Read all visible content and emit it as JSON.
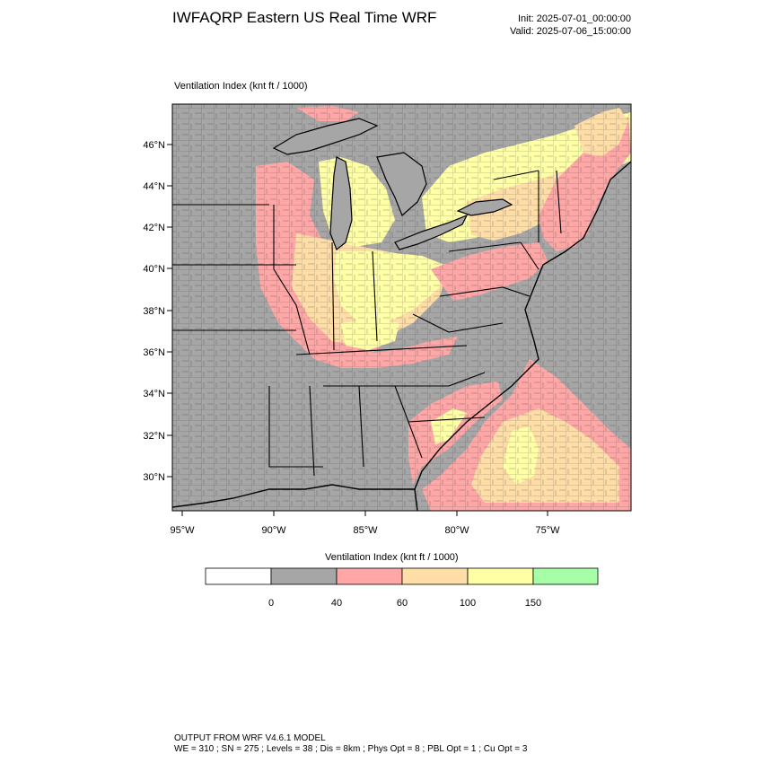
{
  "header": {
    "title": "IWFAQRP Eastern US Real Time WRF",
    "init": "Init: 2025-07-01_00:00:00",
    "valid": "Valid: 2025-07-06_15:00:00",
    "field_label": "Ventilation Index   (knt ft / 1000)"
  },
  "map": {
    "lat_labels": [
      "46°N",
      "44°N",
      "42°N",
      "40°N",
      "38°N",
      "36°N",
      "34°N",
      "32°N",
      "30°N"
    ],
    "lon_labels": [
      "95°W",
      "90°W",
      "85°W",
      "80°W",
      "75°W"
    ],
    "colors": {
      "water": "#a6a6a6",
      "low": "#a6a6a6",
      "poor": "#ffa6a6",
      "marginal": "#ffdda6",
      "fair": "#ffffa6",
      "good": "#a6ffa6"
    }
  },
  "legend": {
    "title": "Ventilation Index  (knt ft / 1000)",
    "bins": [
      {
        "color": "#ffffff"
      },
      {
        "color": "#a6a6a6"
      },
      {
        "color": "#ffa6a6"
      },
      {
        "color": "#ffdda6"
      },
      {
        "color": "#ffffa6"
      },
      {
        "color": "#a6ffa6"
      }
    ],
    "tick_labels": [
      "0",
      "40",
      "60",
      "100",
      "150"
    ]
  },
  "footer": {
    "line1": "OUTPUT FROM WRF V4.6.1 MODEL",
    "line2": "WE = 310 ; SN = 275 ; Levels = 38 ; Dis = 8km ; Phys Opt = 8 ; PBL Opt = 1 ; Cu Opt = 3"
  }
}
